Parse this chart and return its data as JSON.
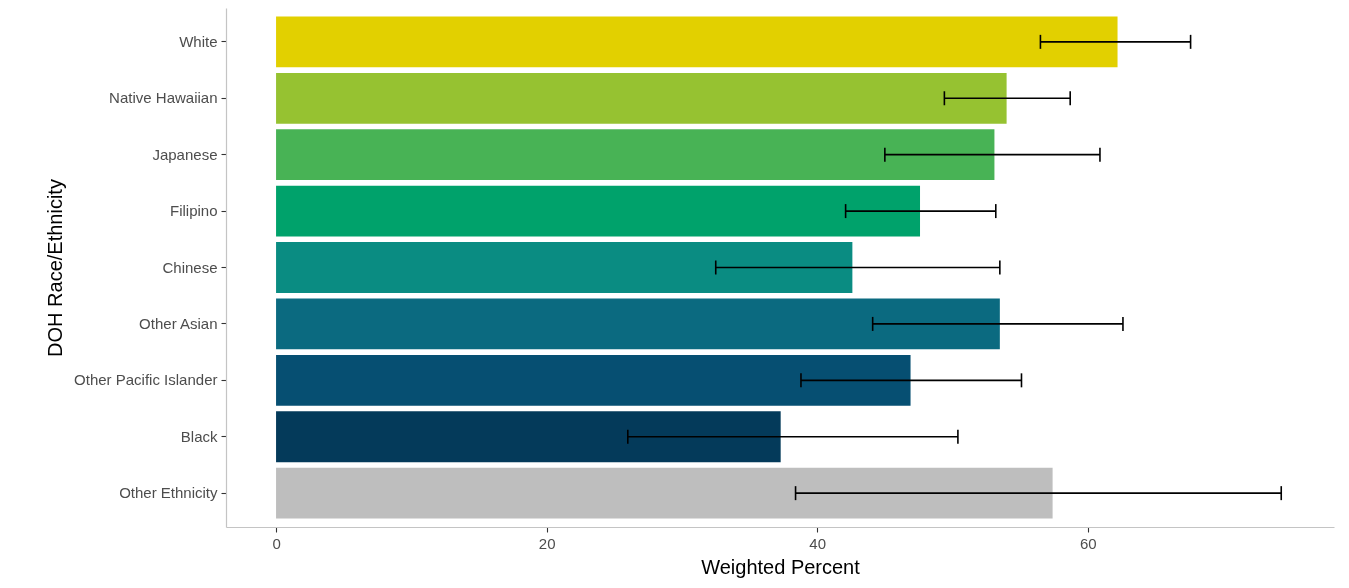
{
  "chart_data": {
    "type": "bar",
    "orientation": "horizontal",
    "xlabel": "Weighted Percent",
    "ylabel": "DOH Race/Ethnicity",
    "categories": [
      "White",
      "Native Hawaiian",
      "Japanese",
      "Filipino",
      "Chinese",
      "Other Asian",
      "Other Pacific Islander",
      "Black",
      "Other Ethnicity"
    ],
    "values": [
      62.2,
      54.0,
      53.1,
      47.6,
      42.6,
      53.5,
      46.9,
      37.3,
      57.4
    ],
    "colors": [
      "#e2d000",
      "#96c231",
      "#48b355",
      "#00a26b",
      "#0a8c82",
      "#0b6a80",
      "#064f72",
      "#043a5a",
      "#bebebe"
    ],
    "errors": [
      [
        56.5,
        67.6
      ],
      [
        49.4,
        58.7
      ],
      [
        45.0,
        60.9
      ],
      [
        42.1,
        53.2
      ],
      [
        32.5,
        53.5
      ],
      [
        44.1,
        62.6
      ],
      [
        38.8,
        55.1
      ],
      [
        26.0,
        50.4
      ],
      [
        38.4,
        74.3
      ]
    ],
    "xlim": [
      -3.7,
      78.2
    ],
    "xticks": [
      0,
      20,
      40,
      60
    ]
  }
}
